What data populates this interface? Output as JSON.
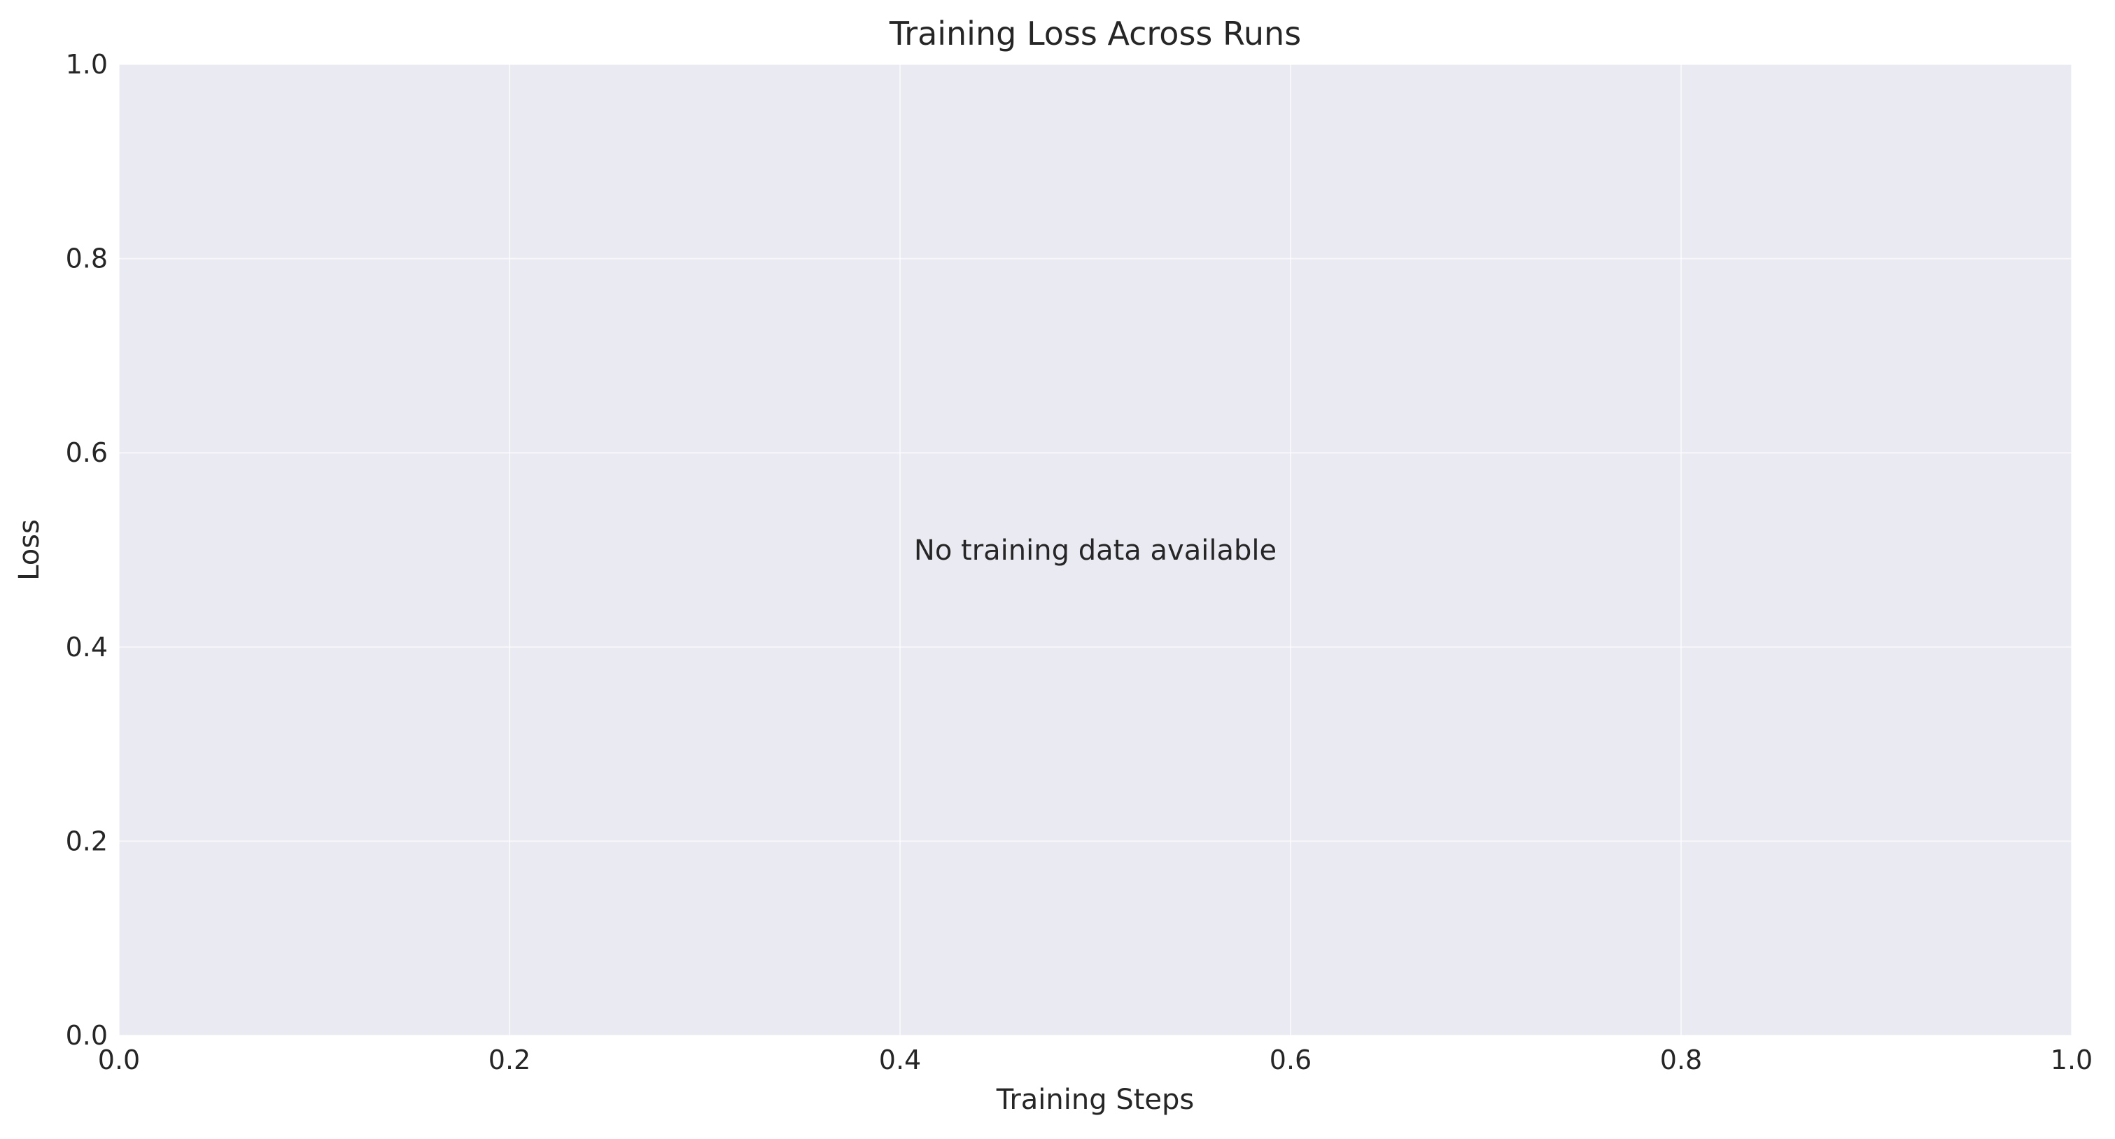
{
  "chart_data": {
    "type": "line",
    "title": "Training Loss Across Runs",
    "xlabel": "Training Steps",
    "ylabel": "Loss",
    "xlim": [
      0.0,
      1.0
    ],
    "ylim": [
      0.0,
      1.0
    ],
    "x_ticks": [
      "0.0",
      "0.2",
      "0.4",
      "0.6",
      "0.8",
      "1.0"
    ],
    "y_ticks": [
      "0.0",
      "0.2",
      "0.4",
      "0.6",
      "0.8",
      "1.0"
    ],
    "grid": true,
    "series": [],
    "annotation": "No training data available",
    "colors": {
      "plot_background": "#EAEAF2",
      "grid": "#FFFFFF",
      "text": "#262626"
    }
  }
}
